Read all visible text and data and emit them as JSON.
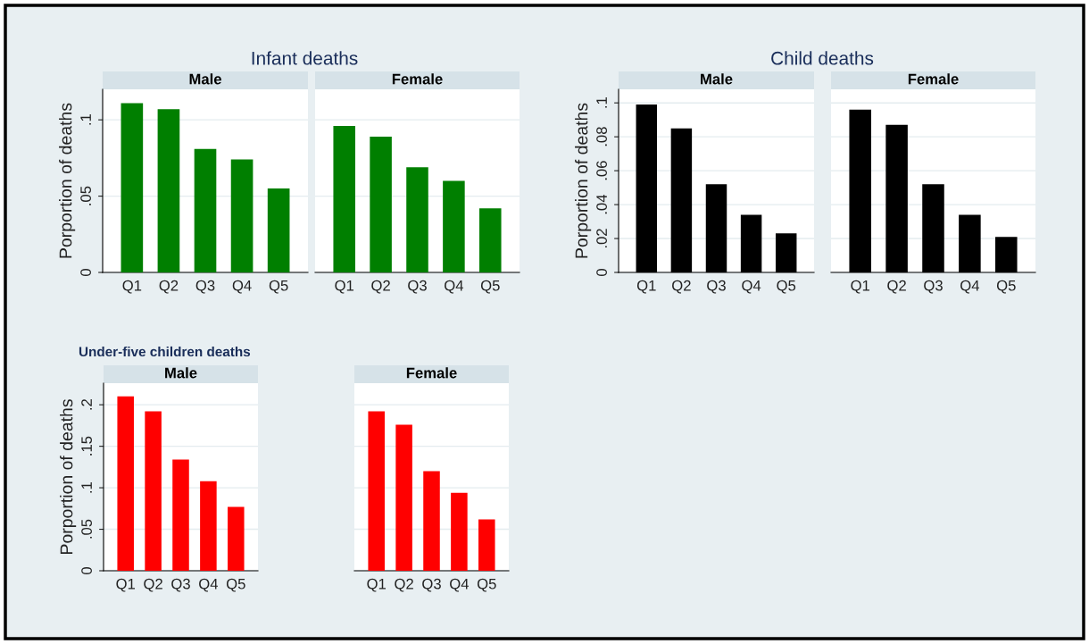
{
  "chart_data": [
    {
      "type": "bar",
      "title": "Infant deaths",
      "subtitle": "Male",
      "ylabel": "Porportion of deaths",
      "categories": [
        "Q1",
        "Q2",
        "Q3",
        "Q4",
        "Q5"
      ],
      "values": [
        0.111,
        0.107,
        0.081,
        0.074,
        0.055
      ],
      "color": "#007f00",
      "ylim": [
        0,
        0.12
      ],
      "yticks": [
        {
          "value": 0,
          "label": "0"
        },
        {
          "value": 0.05,
          "label": ".05"
        },
        {
          "value": 0.1,
          "label": ".1"
        }
      ],
      "grid": "y"
    },
    {
      "type": "bar",
      "subtitle": "Female",
      "categories": [
        "Q1",
        "Q2",
        "Q3",
        "Q4",
        "Q5"
      ],
      "values": [
        0.096,
        0.089,
        0.069,
        0.06,
        0.042
      ],
      "color": "#007f00",
      "ylim": [
        0,
        0.12
      ],
      "yticks": [
        0,
        0.05,
        0.1
      ],
      "grid": "y",
      "tick_labels": "x"
    },
    {
      "type": "bar",
      "title": "Child deaths",
      "subtitle": "Male",
      "ylabel": "Porportion of deaths",
      "categories": [
        "Q1",
        "Q2",
        "Q3",
        "Q4",
        "Q5"
      ],
      "values": [
        0.099,
        0.085,
        0.052,
        0.034,
        0.023
      ],
      "color": "#000000",
      "ylim": [
        0,
        0.108
      ],
      "yticks": [
        {
          "value": 0,
          "label": "0"
        },
        {
          "value": 0.02,
          "label": ".02"
        },
        {
          "value": 0.04,
          "label": ".04"
        },
        {
          "value": 0.06,
          "label": ".06"
        },
        {
          "value": 0.08,
          "label": ".08"
        },
        {
          "value": 0.1,
          "label": ".1"
        }
      ],
      "grid": "y"
    },
    {
      "type": "bar",
      "subtitle": "Female",
      "categories": [
        "Q1",
        "Q2",
        "Q3",
        "Q4",
        "Q5"
      ],
      "values": [
        0.096,
        0.087,
        0.052,
        0.034,
        0.021
      ],
      "color": "#000000",
      "ylim": [
        0,
        0.108
      ],
      "yticks": [
        0,
        0.02,
        0.04,
        0.06,
        0.08,
        0.1
      ],
      "grid": "y",
      "tick_labels": "x"
    },
    {
      "type": "bar",
      "title": "Under-five children deaths",
      "subtitle": "Male",
      "ylabel": "Porportion of deaths",
      "categories": [
        "Q1",
        "Q2",
        "Q3",
        "Q4",
        "Q5"
      ],
      "values": [
        0.21,
        0.192,
        0.134,
        0.108,
        0.077
      ],
      "color": "#ff0000",
      "ylim": [
        0,
        0.226
      ],
      "yticks": [
        {
          "value": 0,
          "label": "0"
        },
        {
          "value": 0.05,
          "label": ".05"
        },
        {
          "value": 0.1,
          "label": ".1"
        },
        {
          "value": 0.15,
          "label": ".15"
        },
        {
          "value": 0.2,
          "label": ".2"
        }
      ],
      "grid": "y"
    },
    {
      "type": "bar",
      "subtitle": "Female",
      "categories": [
        "Q1",
        "Q2",
        "Q3",
        "Q4",
        "Q5"
      ],
      "values": [
        0.192,
        0.176,
        0.12,
        0.094,
        0.062
      ],
      "color": "#ff0000",
      "ylim": [
        0,
        0.226
      ],
      "yticks": [
        0,
        0.05,
        0.1,
        0.15,
        0.2
      ],
      "grid": "y",
      "tick_labels": "x"
    }
  ]
}
